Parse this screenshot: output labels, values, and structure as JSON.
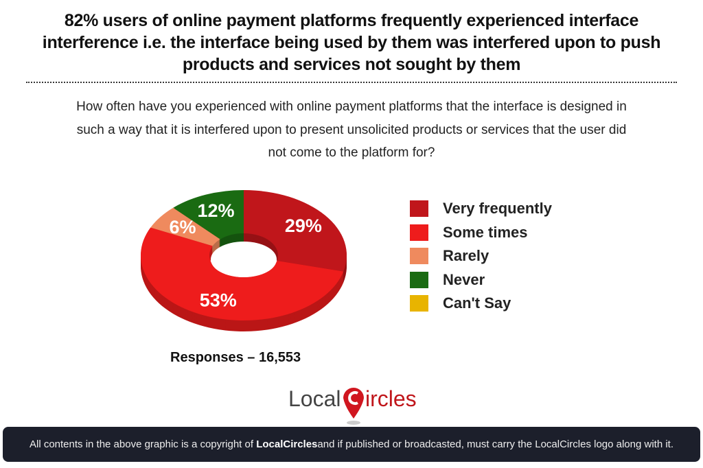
{
  "title": "82% users of online payment platforms frequently experienced interface interference i.e. the interface being used by them was interfered upon to push products and services not sought by them",
  "subtitle": "How often have you experienced with online payment platforms that the interface is designed in such a way that it is interfered upon to present unsolicited products or services that the user did not come to the platform for?",
  "chart_data": {
    "type": "pie",
    "style": "3d-donut",
    "categories": [
      "Very frequently",
      "Some times",
      "Rarely",
      "Never",
      "Can't Say"
    ],
    "values": [
      29,
      53,
      6,
      12,
      0
    ],
    "data_labels": [
      "29%",
      "53%",
      "6%",
      "12%",
      ""
    ],
    "colors": [
      "#c0161b",
      "#ee1c1c",
      "#ef8a5e",
      "#1a6b12",
      "#e8b400"
    ],
    "legend_position": "right"
  },
  "responses": "Responses – 16,553",
  "logo": {
    "text_left": "Local",
    "text_right": "ircles",
    "brand_color": "#d0161f"
  },
  "footer": {
    "before": "All contents in the above graphic is a copyright of ",
    "brand": "LocalCircles",
    "after": " and if published or broadcasted, must carry the LocalCircles logo along with it."
  }
}
